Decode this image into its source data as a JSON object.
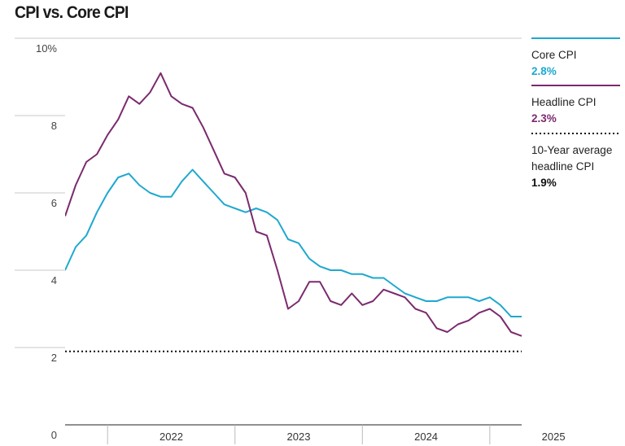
{
  "chart_data": {
    "type": "line",
    "title": "CPI vs. Core CPI",
    "xlabel": "",
    "ylabel": "",
    "ylim": [
      0,
      10
    ],
    "xlim": [
      "2021-09",
      "2025-04"
    ],
    "grid": true,
    "legend_position": "right",
    "y_ticks": [
      "0",
      "2",
      "4",
      "6",
      "8",
      "10%"
    ],
    "x_ticks": [
      "2022",
      "2023",
      "2024",
      "2025"
    ],
    "x": [
      "2021-09",
      "2021-10",
      "2021-11",
      "2021-12",
      "2022-01",
      "2022-02",
      "2022-03",
      "2022-04",
      "2022-05",
      "2022-06",
      "2022-07",
      "2022-08",
      "2022-09",
      "2022-10",
      "2022-11",
      "2022-12",
      "2023-01",
      "2023-02",
      "2023-03",
      "2023-04",
      "2023-05",
      "2023-06",
      "2023-07",
      "2023-08",
      "2023-09",
      "2023-10",
      "2023-11",
      "2023-12",
      "2024-01",
      "2024-02",
      "2024-03",
      "2024-04",
      "2024-05",
      "2024-06",
      "2024-07",
      "2024-08",
      "2024-09",
      "2024-10",
      "2024-11",
      "2024-12",
      "2025-01",
      "2025-02",
      "2025-03",
      "2025-04"
    ],
    "series": [
      {
        "name": "Core CPI",
        "color": "#1fa8d0",
        "latest": "2.8%",
        "values": [
          4.0,
          4.6,
          4.9,
          5.5,
          6.0,
          6.4,
          6.5,
          6.2,
          6.0,
          5.9,
          5.9,
          6.3,
          6.6,
          6.3,
          6.0,
          5.7,
          5.6,
          5.5,
          5.6,
          5.5,
          5.3,
          4.8,
          4.7,
          4.3,
          4.1,
          4.0,
          4.0,
          3.9,
          3.9,
          3.8,
          3.8,
          3.6,
          3.4,
          3.3,
          3.2,
          3.2,
          3.3,
          3.3,
          3.3,
          3.2,
          3.3,
          3.1,
          2.8,
          2.8
        ]
      },
      {
        "name": "Headline CPI",
        "color": "#7b2a6e",
        "latest": "2.3%",
        "values": [
          5.4,
          6.2,
          6.8,
          7.0,
          7.5,
          7.9,
          8.5,
          8.3,
          8.6,
          9.1,
          8.5,
          8.3,
          8.2,
          7.7,
          7.1,
          6.5,
          6.4,
          6.0,
          5.0,
          4.9,
          4.0,
          3.0,
          3.2,
          3.7,
          3.7,
          3.2,
          3.1,
          3.4,
          3.1,
          3.2,
          3.5,
          3.4,
          3.3,
          3.0,
          2.9,
          2.5,
          2.4,
          2.6,
          2.7,
          2.9,
          3.0,
          2.8,
          2.4,
          2.3
        ]
      },
      {
        "name": "10-Year average headline CPI",
        "color": "#111111",
        "latest": "1.9%",
        "values": [
          1.9,
          1.9,
          1.9,
          1.9,
          1.9,
          1.9,
          1.9,
          1.9,
          1.9,
          1.9,
          1.9,
          1.9,
          1.9,
          1.9,
          1.9,
          1.9,
          1.9,
          1.9,
          1.9,
          1.9,
          1.9,
          1.9,
          1.9,
          1.9,
          1.9,
          1.9,
          1.9,
          1.9,
          1.9,
          1.9,
          1.9,
          1.9,
          1.9,
          1.9,
          1.9,
          1.9,
          1.9,
          1.9,
          1.9,
          1.9,
          1.9,
          1.9,
          1.9,
          1.9
        ]
      }
    ],
    "legend": [
      {
        "label_lines": [
          "Core CPI"
        ],
        "value": "2.8%",
        "color": "#1fa8d0",
        "style": "solid"
      },
      {
        "label_lines": [
          "Headline CPI"
        ],
        "value": "2.3%",
        "color": "#7b2a6e",
        "style": "solid"
      },
      {
        "label_lines": [
          "10-Year average",
          "headline CPI"
        ],
        "value": "1.9%",
        "color": "#111111",
        "style": "dotted"
      }
    ]
  }
}
